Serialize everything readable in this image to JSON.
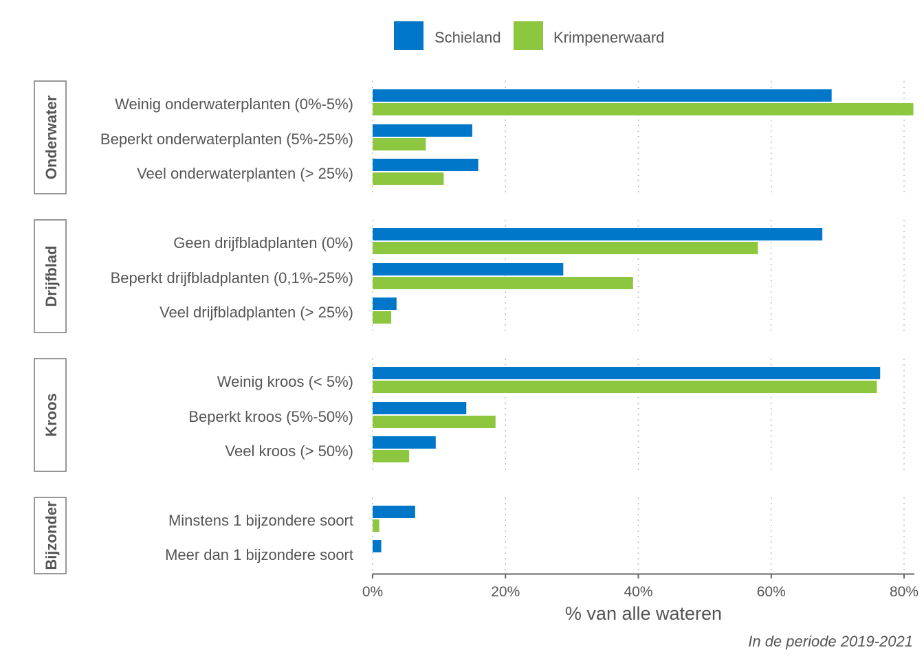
{
  "chart_data": {
    "type": "bar",
    "orientation": "horizontal",
    "xlabel": "% van alle wateren",
    "caption": "In de periode 2019-2021",
    "xlim": [
      0,
      80
    ],
    "xticks": [
      "0%",
      "20%",
      "40%",
      "60%",
      "80%"
    ],
    "xtick_values": [
      0,
      20,
      40,
      60,
      80
    ],
    "grid": "vertical dotted",
    "legend_position": "top",
    "series": [
      {
        "name": "Schieland",
        "color": "#0077C8"
      },
      {
        "name": "Krimpenerwaard",
        "color": "#8DC63F"
      }
    ],
    "groups": [
      {
        "label": "Onderwater",
        "categories": [
          {
            "label": "Weinig onderwaterplanten (0%-5%)",
            "values": [
              69.1,
              81.4
            ]
          },
          {
            "label": "Beperkt onderwaterplanten (5%-25%)",
            "values": [
              15.0,
              8.0
            ]
          },
          {
            "label": "Veel onderwaterplanten (> 25%)",
            "values": [
              15.9,
              10.7
            ]
          }
        ]
      },
      {
        "label": "Drijfblad",
        "categories": [
          {
            "label": "Geen drijfbladplanten (0%)",
            "values": [
              67.7,
              58.0
            ]
          },
          {
            "label": "Beperkt drijfbladplanten (0,1%-25%)",
            "values": [
              28.7,
              39.2
            ]
          },
          {
            "label": "Veel drijfbladplanten (> 25%)",
            "values": [
              3.6,
              2.8
            ]
          }
        ]
      },
      {
        "label": "Kroos",
        "categories": [
          {
            "label": "Weinig kroos (< 5%)",
            "values": [
              76.4,
              75.9
            ]
          },
          {
            "label": "Beperkt kroos (5%-50%)",
            "values": [
              14.1,
              18.5
            ]
          },
          {
            "label": "Veel kroos (> 50%)",
            "values": [
              9.5,
              5.5
            ]
          }
        ]
      },
      {
        "label": "Bijzonder",
        "categories": [
          {
            "label": "Minstens 1 bijzondere soort",
            "values": [
              6.4,
              1.0
            ]
          },
          {
            "label": "Meer dan 1 bijzondere soort",
            "values": [
              1.3,
              0
            ]
          }
        ]
      }
    ]
  }
}
